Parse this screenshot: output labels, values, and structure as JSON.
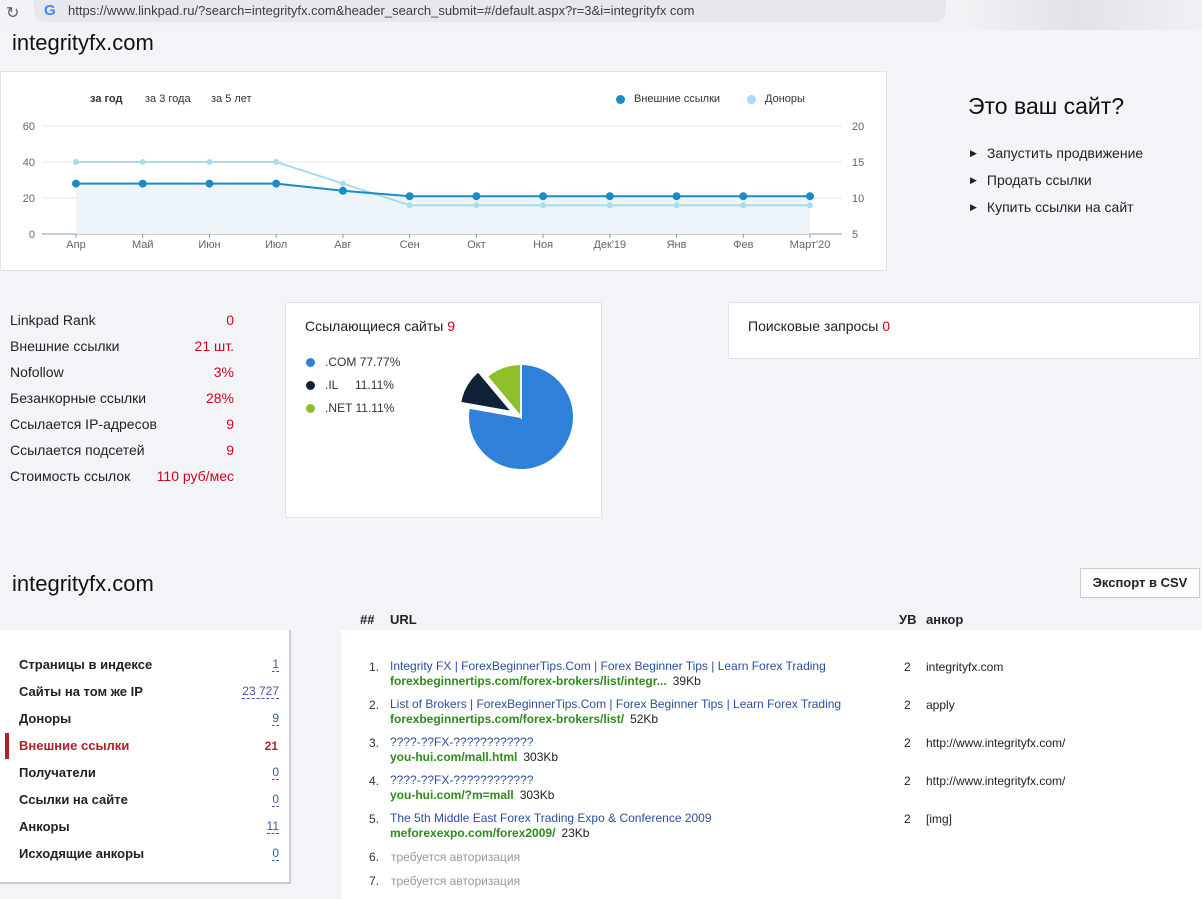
{
  "browser": {
    "url": "https://www.linkpad.ru/?search=integrityfx.com&header_search_submit=#/default.aspx?r=3&i=integrityfx com"
  },
  "site_title": "integrityfx.com",
  "chart_tabs": [
    "за год",
    "за 3 года",
    "за 5 лет"
  ],
  "chart_data": {
    "type": "line",
    "categories": [
      "Апр",
      "Май",
      "Июн",
      "Июл",
      "Авг",
      "Сен",
      "Окт",
      "Ноя",
      "Дек'19",
      "Янв",
      "Фев",
      "Март'20"
    ],
    "series": [
      {
        "name": "Внешние ссылки",
        "axis": "left",
        "color": "#1a8bc6",
        "values": [
          28,
          28,
          28,
          28,
          24,
          21,
          21,
          21,
          21,
          21,
          21,
          21
        ]
      },
      {
        "name": "Доноры",
        "axis": "right",
        "color": "#a9dcef",
        "values": [
          15,
          15,
          15,
          15,
          12,
          9,
          9,
          9,
          9,
          9,
          9,
          9
        ]
      }
    ],
    "ylim_left": [
      0,
      60
    ],
    "yticks_left": [
      "0",
      "20",
      "40",
      "60"
    ],
    "ylim_right": [
      5,
      20
    ],
    "yticks_right": [
      "5",
      "10",
      "15",
      "20"
    ],
    "grid": true,
    "legend": "top-right"
  },
  "promo": {
    "title": "Это ваш сайт?",
    "items": [
      "Запустить продвижение",
      "Продать ссылки",
      "Купить ссылки на сайт"
    ]
  },
  "stats": [
    {
      "label": "Linkpad Rank",
      "value": "0"
    },
    {
      "label": "Внешние ссылки",
      "value": "21 шт."
    },
    {
      "label": "Nofollow",
      "value": "3%"
    },
    {
      "label": "Безанкорные ссылки",
      "value": "28%"
    },
    {
      "label": "Ссылается IP-адресов",
      "value": "9"
    },
    {
      "label": "Ссылается подсетей",
      "value": "9"
    },
    {
      "label": "Стоимость ссылок",
      "value": "110 руб/мес"
    }
  ],
  "referring": {
    "title": "Ссылающиеся сайты",
    "count": "9",
    "pie": {
      "type": "pie",
      "slices": [
        {
          "label": ".COM",
          "pct_text": "77.77%",
          "value": 77.77,
          "color": "#2f80d8"
        },
        {
          "label": ".IL",
          "pct_text": "11.11%",
          "value": 11.11,
          "color": "#0f2238"
        },
        {
          "label": ".NET",
          "pct_text": "11.11%",
          "value": 11.11,
          "color": "#8cbf2a"
        }
      ]
    }
  },
  "queries": {
    "title": "Поисковые запросы",
    "count": "0"
  },
  "export_label": "Экспорт в CSV",
  "nav": [
    {
      "label": "Страницы в индексе",
      "count": "1"
    },
    {
      "label": "Сайты на том же IP",
      "count": "23 727"
    },
    {
      "label": "Доноры",
      "count": "9"
    },
    {
      "label": "Внешние ссылки",
      "count": "21",
      "active": true
    },
    {
      "label": "Получатели",
      "count": "0"
    },
    {
      "label": "Ссылки на сайте",
      "count": "0"
    },
    {
      "label": "Анкоры",
      "count": "11"
    },
    {
      "label": "Исходящие анкоры",
      "count": "0"
    }
  ],
  "table": {
    "headers": {
      "num": "##",
      "url": "URL",
      "uv": "УВ",
      "anchor": "анкор"
    },
    "rows": [
      {
        "n": "1.",
        "title": "Integrity FX | ForexBeginnerTips.Com | Forex Beginner Tips | Learn Forex Trading",
        "domain": "forexbeginnertips.com/forex-brokers/list/integr...",
        "size": "39Kb",
        "uv": "2",
        "anchor": "integrityfx.com"
      },
      {
        "n": "2.",
        "title": "List of Brokers | ForexBeginnerTips.Com | Forex Beginner Tips | Learn Forex Trading",
        "domain": "forexbeginnertips.com/forex-brokers/list/",
        "size": "52Kb",
        "uv": "2",
        "anchor": "apply"
      },
      {
        "n": "3.",
        "title": "????-??FX-????????????",
        "domain": "you-hui.com/mall.html",
        "size": "303Kb",
        "uv": "2",
        "anchor": "http://www.integrityfx.com/"
      },
      {
        "n": "4.",
        "title": "????-??FX-????????????",
        "domain": "you-hui.com/?m=mall",
        "size": "303Kb",
        "uv": "2",
        "anchor": "http://www.integrityfx.com/"
      },
      {
        "n": "5.",
        "title": "The 5th Middle East Forex Trading Expo & Conference 2009",
        "domain": "meforexexpo.com/forex2009/",
        "size": "23Kb",
        "uv": "2",
        "anchor": "[img]"
      }
    ],
    "auth_rows": [
      {
        "n": "6.",
        "text": "требуется авторизация"
      },
      {
        "n": "7.",
        "text": "требуется авторизация"
      }
    ]
  }
}
